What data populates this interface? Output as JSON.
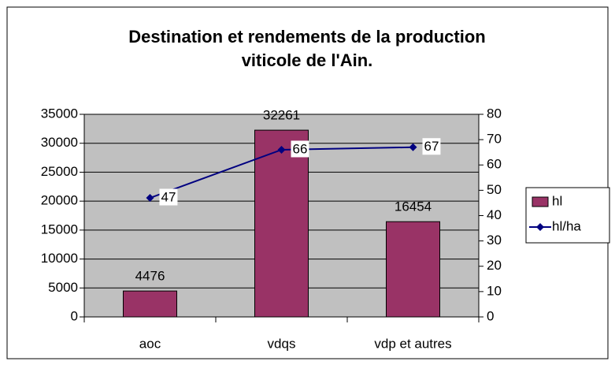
{
  "chart_data": {
    "type": "bar_line",
    "title": [
      "Destination et rendements de la production",
      "viticole de l'Ain."
    ],
    "categories": [
      "aoc",
      "vdqs",
      "vdp et autres"
    ],
    "series": [
      {
        "name": "hl",
        "color": "#993366",
        "type": "bar",
        "values": [
          4476,
          32261,
          16454
        ]
      },
      {
        "name": "hl/ha",
        "color": "#000080",
        "type": "line",
        "axis": "y2",
        "values": [
          47,
          66,
          67
        ]
      }
    ],
    "ylim": [
      0,
      35000
    ],
    "yticks": [
      0,
      5000,
      10000,
      15000,
      20000,
      25000,
      30000,
      35000
    ],
    "y2lim": [
      0,
      80
    ],
    "y2ticks": [
      0,
      10,
      20,
      30,
      40,
      50,
      60,
      70,
      80
    ],
    "grid": true,
    "legend": "right"
  }
}
